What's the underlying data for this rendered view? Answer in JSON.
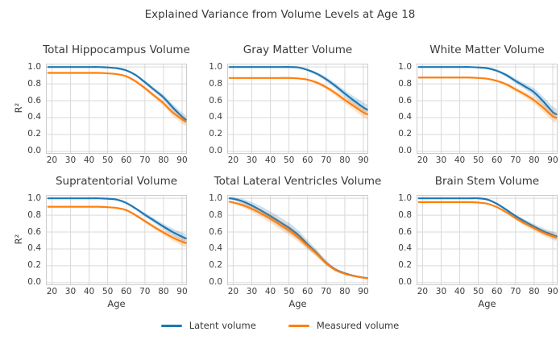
{
  "chart_data": {
    "type": "line",
    "suptitle": "Explained Variance from Volume Levels at Age 18",
    "xlabel": "Age",
    "ylabel": "R²",
    "xlim": [
      16.8,
      92.6
    ],
    "ylim": [
      -0.03,
      1.04
    ],
    "xticks": [
      20,
      30,
      40,
      50,
      60,
      70,
      80,
      90
    ],
    "yticks": [
      0.0,
      0.2,
      0.4,
      0.6,
      0.8,
      1.0
    ],
    "grid": true,
    "legend_position": "bottom-center",
    "colors": {
      "latent": "#1f77b4",
      "measured": "#ff7f0e",
      "grid": "#d9d9d9",
      "spine": "#cccccc",
      "text": "#3a3a3a"
    },
    "legend": [
      {
        "label": "Latent volume",
        "color": "#1f77b4"
      },
      {
        "label": "Measured volume",
        "color": "#ff7f0e"
      }
    ],
    "ages": [
      18,
      20,
      25,
      30,
      35,
      40,
      45,
      50,
      55,
      60,
      65,
      70,
      75,
      80,
      85,
      90,
      92
    ],
    "subplots": [
      {
        "title": "Total Hippocampus Volume",
        "series": [
          {
            "name": "Latent volume",
            "color": "#1f77b4",
            "values": [
              1.0,
              1.0,
              1.0,
              1.0,
              1.0,
              1.0,
              1.0,
              0.995,
              0.985,
              0.96,
              0.905,
              0.82,
              0.73,
              0.64,
              0.52,
              0.41,
              0.375
            ],
            "band": [
              0.004,
              0.004,
              0.004,
              0.004,
              0.004,
              0.004,
              0.004,
              0.005,
              0.006,
              0.01,
              0.015,
              0.02,
              0.025,
              0.03,
              0.04,
              0.05,
              0.055
            ]
          },
          {
            "name": "Measured volume",
            "color": "#ff7f0e",
            "values": [
              0.93,
              0.93,
              0.93,
              0.93,
              0.93,
              0.93,
              0.93,
              0.925,
              0.915,
              0.89,
              0.83,
              0.75,
              0.66,
              0.57,
              0.46,
              0.38,
              0.355
            ],
            "band": [
              0.004,
              0.004,
              0.004,
              0.004,
              0.004,
              0.004,
              0.004,
              0.005,
              0.006,
              0.01,
              0.015,
              0.02,
              0.025,
              0.03,
              0.04,
              0.05,
              0.055
            ]
          }
        ]
      },
      {
        "title": "Gray Matter Volume",
        "series": [
          {
            "name": "Latent volume",
            "color": "#1f77b4",
            "values": [
              1.0,
              1.0,
              1.0,
              1.0,
              1.0,
              1.0,
              1.0,
              1.0,
              0.995,
              0.965,
              0.92,
              0.855,
              0.775,
              0.685,
              0.6,
              0.52,
              0.495
            ],
            "band": [
              0.004,
              0.004,
              0.004,
              0.004,
              0.004,
              0.004,
              0.004,
              0.005,
              0.006,
              0.012,
              0.018,
              0.025,
              0.032,
              0.04,
              0.05,
              0.06,
              0.065
            ]
          },
          {
            "name": "Measured volume",
            "color": "#ff7f0e",
            "values": [
              0.87,
              0.87,
              0.87,
              0.87,
              0.87,
              0.87,
              0.87,
              0.87,
              0.865,
              0.85,
              0.815,
              0.76,
              0.69,
              0.61,
              0.535,
              0.46,
              0.44
            ],
            "band": [
              0.004,
              0.004,
              0.004,
              0.004,
              0.004,
              0.004,
              0.004,
              0.005,
              0.006,
              0.01,
              0.015,
              0.022,
              0.03,
              0.038,
              0.045,
              0.055,
              0.06
            ]
          }
        ]
      },
      {
        "title": "White Matter Volume",
        "series": [
          {
            "name": "Latent volume",
            "color": "#1f77b4",
            "values": [
              1.0,
              1.0,
              1.0,
              1.0,
              1.0,
              1.0,
              1.0,
              0.995,
              0.985,
              0.955,
              0.905,
              0.835,
              0.77,
              0.7,
              0.59,
              0.465,
              0.44
            ],
            "band": [
              0.004,
              0.004,
              0.004,
              0.004,
              0.004,
              0.004,
              0.004,
              0.005,
              0.007,
              0.012,
              0.02,
              0.028,
              0.035,
              0.045,
              0.055,
              0.065,
              0.07
            ]
          },
          {
            "name": "Measured volume",
            "color": "#ff7f0e",
            "values": [
              0.875,
              0.875,
              0.875,
              0.875,
              0.875,
              0.875,
              0.875,
              0.87,
              0.86,
              0.835,
              0.795,
              0.735,
              0.675,
              0.605,
              0.515,
              0.415,
              0.4
            ],
            "band": [
              0.004,
              0.004,
              0.004,
              0.004,
              0.004,
              0.004,
              0.004,
              0.005,
              0.006,
              0.01,
              0.016,
              0.024,
              0.032,
              0.04,
              0.05,
              0.06,
              0.065
            ]
          }
        ]
      },
      {
        "title": "Supratentorial Volume",
        "series": [
          {
            "name": "Latent volume",
            "color": "#1f77b4",
            "values": [
              1.0,
              1.0,
              1.0,
              1.0,
              1.0,
              1.0,
              1.0,
              0.995,
              0.985,
              0.945,
              0.88,
              0.805,
              0.735,
              0.665,
              0.6,
              0.545,
              0.525
            ],
            "band": [
              0.004,
              0.004,
              0.004,
              0.004,
              0.004,
              0.004,
              0.004,
              0.005,
              0.006,
              0.01,
              0.016,
              0.022,
              0.028,
              0.034,
              0.042,
              0.05,
              0.055
            ]
          },
          {
            "name": "Measured volume",
            "color": "#ff7f0e",
            "values": [
              0.9,
              0.9,
              0.9,
              0.9,
              0.9,
              0.9,
              0.9,
              0.895,
              0.885,
              0.86,
              0.8,
              0.73,
              0.66,
              0.595,
              0.535,
              0.485,
              0.47
            ],
            "band": [
              0.004,
              0.004,
              0.004,
              0.004,
              0.004,
              0.004,
              0.004,
              0.005,
              0.006,
              0.01,
              0.015,
              0.02,
              0.026,
              0.032,
              0.04,
              0.048,
              0.052
            ]
          }
        ]
      },
      {
        "title": "Total Lateral Ventricles Volume",
        "series": [
          {
            "name": "Latent volume",
            "color": "#1f77b4",
            "values": [
              1.0,
              0.995,
              0.965,
              0.915,
              0.855,
              0.79,
              0.72,
              0.65,
              0.565,
              0.455,
              0.35,
              0.235,
              0.155,
              0.11,
              0.08,
              0.06,
              0.055
            ],
            "band": [
              0.01,
              0.015,
              0.03,
              0.04,
              0.05,
              0.055,
              0.06,
              0.06,
              0.055,
              0.05,
              0.04,
              0.03,
              0.02,
              0.015,
              0.01,
              0.008,
              0.008
            ]
          },
          {
            "name": "Measured volume",
            "color": "#ff7f0e",
            "values": [
              0.96,
              0.95,
              0.92,
              0.875,
              0.82,
              0.76,
              0.69,
              0.62,
              0.535,
              0.435,
              0.34,
              0.23,
              0.15,
              0.105,
              0.078,
              0.058,
              0.053
            ],
            "band": [
              0.01,
              0.012,
              0.025,
              0.035,
              0.045,
              0.05,
              0.055,
              0.055,
              0.05,
              0.045,
              0.035,
              0.026,
              0.018,
              0.012,
              0.009,
              0.007,
              0.007
            ]
          }
        ]
      },
      {
        "title": "Brain Stem Volume",
        "series": [
          {
            "name": "Latent volume",
            "color": "#1f77b4",
            "values": [
              1.0,
              1.0,
              1.0,
              1.0,
              1.0,
              1.0,
              1.0,
              1.0,
              0.985,
              0.935,
              0.865,
              0.79,
              0.725,
              0.665,
              0.61,
              0.565,
              0.55
            ],
            "band": [
              0.004,
              0.004,
              0.004,
              0.004,
              0.004,
              0.004,
              0.004,
              0.005,
              0.006,
              0.01,
              0.014,
              0.02,
              0.025,
              0.03,
              0.036,
              0.042,
              0.045
            ]
          },
          {
            "name": "Measured volume",
            "color": "#ff7f0e",
            "values": [
              0.955,
              0.955,
              0.955,
              0.955,
              0.955,
              0.955,
              0.955,
              0.95,
              0.935,
              0.895,
              0.835,
              0.765,
              0.7,
              0.645,
              0.59,
              0.55,
              0.535
            ],
            "band": [
              0.004,
              0.004,
              0.004,
              0.004,
              0.004,
              0.004,
              0.004,
              0.005,
              0.006,
              0.01,
              0.014,
              0.02,
              0.025,
              0.03,
              0.036,
              0.042,
              0.045
            ]
          }
        ]
      }
    ]
  }
}
